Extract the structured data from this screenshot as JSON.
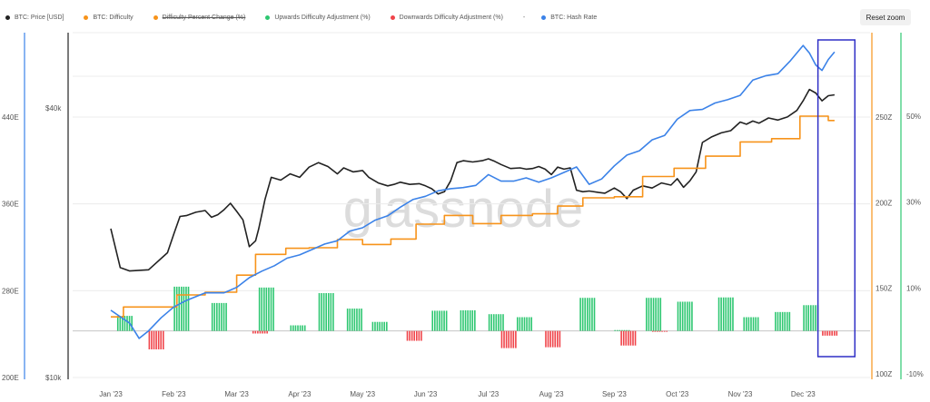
{
  "toolbar": {
    "reset_zoom_label": "Reset zoom"
  },
  "watermark": "glassnode",
  "legend": [
    {
      "label": "BTC: Price [USD]",
      "color": "#222222",
      "struck": false
    },
    {
      "label": "BTC: Difficulty",
      "color": "#f7931a",
      "struck": false
    },
    {
      "label": "Difficulty Percent Change (%)",
      "color": "#f7931a",
      "struck": true
    },
    {
      "label": "Upwards Difficulty Adjustment (%)",
      "color": "#2ec771",
      "struck": false
    },
    {
      "label": "Downwards Difficulty Adjustment (%)",
      "color": "#f0444a",
      "struck": false
    },
    {
      "label": "-",
      "color": "",
      "struck": false,
      "separator": true
    },
    {
      "label": "BTC: Hash Rate",
      "color": "#3b82e8",
      "struck": false
    }
  ],
  "chart_data": {
    "type": "line",
    "x_labels": [
      "Jan '23",
      "Feb '23",
      "Mar '23",
      "Apr '23",
      "May '23",
      "Jun '23",
      "Jul '23",
      "Aug '23",
      "Sep '23",
      "Oct '23",
      "Nov '23",
      "Dec '23"
    ],
    "axes": {
      "hash_rate": {
        "ticks": [
          "200E",
          "280E",
          "360E",
          "440E"
        ],
        "range": [
          200,
          560
        ]
      },
      "price": {
        "ticks": [
          "$10k",
          "$40k"
        ],
        "scale": "log"
      },
      "difficulty": {
        "ticks": [
          "100Z",
          "150Z",
          "200Z",
          "250Z"
        ]
      },
      "percent_change": {
        "ticks": [
          "-10%",
          "10%",
          "30%",
          "50%"
        ],
        "range": [
          -10,
          70
        ]
      }
    },
    "series": [
      {
        "name": "BTC: Price [USD]",
        "color": "#222222",
        "values": [
          [
            0,
            21.5
          ],
          [
            0.15,
            17.6
          ],
          [
            0.3,
            17.3
          ],
          [
            0.6,
            17.4
          ],
          [
            0.9,
            19.0
          ],
          [
            1.0,
            20.9
          ],
          [
            1.1,
            22.9
          ],
          [
            1.2,
            23.0
          ],
          [
            1.35,
            23.4
          ],
          [
            1.5,
            23.6
          ],
          [
            1.6,
            22.8
          ],
          [
            1.7,
            23.1
          ],
          [
            1.8,
            23.7
          ],
          [
            1.9,
            24.5
          ],
          [
            2.0,
            23.5
          ],
          [
            2.1,
            22.5
          ],
          [
            2.2,
            19.6
          ],
          [
            2.3,
            20.2
          ],
          [
            2.35,
            21.5
          ],
          [
            2.45,
            25.0
          ],
          [
            2.55,
            28.0
          ],
          [
            2.7,
            27.6
          ],
          [
            2.85,
            28.5
          ],
          [
            3.0,
            28.0
          ],
          [
            3.15,
            29.5
          ],
          [
            3.3,
            30.2
          ],
          [
            3.45,
            29.6
          ],
          [
            3.6,
            28.5
          ],
          [
            3.7,
            29.4
          ],
          [
            3.85,
            28.8
          ],
          [
            4.0,
            29.0
          ],
          [
            4.1,
            28.0
          ],
          [
            4.25,
            27.2
          ],
          [
            4.4,
            26.8
          ],
          [
            4.5,
            27.0
          ],
          [
            4.6,
            27.3
          ],
          [
            4.75,
            27.0
          ],
          [
            4.9,
            27.1
          ],
          [
            5.0,
            26.8
          ],
          [
            5.1,
            26.4
          ],
          [
            5.2,
            25.7
          ],
          [
            5.3,
            26.0
          ],
          [
            5.4,
            27.5
          ],
          [
            5.5,
            30.2
          ],
          [
            5.6,
            30.5
          ],
          [
            5.75,
            30.3
          ],
          [
            5.9,
            30.5
          ],
          [
            6.0,
            30.8
          ],
          [
            6.1,
            30.4
          ],
          [
            6.2,
            29.9
          ],
          [
            6.35,
            29.3
          ],
          [
            6.5,
            29.4
          ],
          [
            6.6,
            29.2
          ],
          [
            6.7,
            29.3
          ],
          [
            6.8,
            29.6
          ],
          [
            6.9,
            29.2
          ],
          [
            7.0,
            28.4
          ],
          [
            7.1,
            29.5
          ],
          [
            7.2,
            29.2
          ],
          [
            7.3,
            29.4
          ],
          [
            7.4,
            26.2
          ],
          [
            7.5,
            26.0
          ],
          [
            7.6,
            26.1
          ],
          [
            7.75,
            25.9
          ],
          [
            7.85,
            25.8
          ],
          [
            8.0,
            26.5
          ],
          [
            8.1,
            26.0
          ],
          [
            8.2,
            25.1
          ],
          [
            8.3,
            26.2
          ],
          [
            8.45,
            26.8
          ],
          [
            8.6,
            26.5
          ],
          [
            8.75,
            27.2
          ],
          [
            8.9,
            26.9
          ],
          [
            9.0,
            27.8
          ],
          [
            9.1,
            26.6
          ],
          [
            9.2,
            27.5
          ],
          [
            9.3,
            28.8
          ],
          [
            9.4,
            33.5
          ],
          [
            9.55,
            34.5
          ],
          [
            9.7,
            35.2
          ],
          [
            9.85,
            35.6
          ],
          [
            10.0,
            37.2
          ],
          [
            10.1,
            36.8
          ],
          [
            10.2,
            37.4
          ],
          [
            10.3,
            37.0
          ],
          [
            10.45,
            38.0
          ],
          [
            10.6,
            37.6
          ],
          [
            10.75,
            38.2
          ],
          [
            10.9,
            39.5
          ],
          [
            11.0,
            41.5
          ],
          [
            11.1,
            44.0
          ],
          [
            11.2,
            43.2
          ],
          [
            11.3,
            41.5
          ],
          [
            11.4,
            42.6
          ],
          [
            11.5,
            42.8
          ]
        ]
      },
      {
        "name": "BTC: Difficulty",
        "color": "#f7931a",
        "values": [
          [
            0,
            35.4
          ],
          [
            0.2,
            35.4
          ],
          [
            0.2,
            37.2
          ],
          [
            0.7,
            37.2
          ],
          [
            0.7,
            37.2
          ],
          [
            1.05,
            37.2
          ],
          [
            1.05,
            39.4
          ],
          [
            1.5,
            39.4
          ],
          [
            1.5,
            39.9
          ],
          [
            2.0,
            39.9
          ],
          [
            2.0,
            43.0
          ],
          [
            2.3,
            43.0
          ],
          [
            2.3,
            46.8
          ],
          [
            2.78,
            46.8
          ],
          [
            2.78,
            47.9
          ],
          [
            3.15,
            47.9
          ],
          [
            3.15,
            48.0
          ],
          [
            3.6,
            48.0
          ],
          [
            3.6,
            49.5
          ],
          [
            4.0,
            49.5
          ],
          [
            4.0,
            48.6
          ],
          [
            4.45,
            48.6
          ],
          [
            4.45,
            49.6
          ],
          [
            4.85,
            49.6
          ],
          [
            4.85,
            52.3
          ],
          [
            5.3,
            52.3
          ],
          [
            5.3,
            53.9
          ],
          [
            5.75,
            53.9
          ],
          [
            5.75,
            52.4
          ],
          [
            6.2,
            52.4
          ],
          [
            6.2,
            53.9
          ],
          [
            6.7,
            53.9
          ],
          [
            6.7,
            54.2
          ],
          [
            7.1,
            54.2
          ],
          [
            7.1,
            55.6
          ],
          [
            7.5,
            55.6
          ],
          [
            7.5,
            57.1
          ],
          [
            8.0,
            57.1
          ],
          [
            8.0,
            57.3
          ],
          [
            8.45,
            57.3
          ],
          [
            8.45,
            61.0
          ],
          [
            8.95,
            61.0
          ],
          [
            8.95,
            62.5
          ],
          [
            9.45,
            62.5
          ],
          [
            9.45,
            64.7
          ],
          [
            10.0,
            64.7
          ],
          [
            10.0,
            67.3
          ],
          [
            10.5,
            67.3
          ],
          [
            10.5,
            67.9
          ],
          [
            10.95,
            67.9
          ],
          [
            10.95,
            72.0
          ],
          [
            11.4,
            72.0
          ],
          [
            11.4,
            71.2
          ],
          [
            11.5,
            71.2
          ]
        ]
      },
      {
        "name": "BTC: Hash Rate",
        "color": "#3b82e8",
        "values": [
          [
            0,
            262
          ],
          [
            0.15,
            256
          ],
          [
            0.3,
            250
          ],
          [
            0.45,
            236
          ],
          [
            0.6,
            243
          ],
          [
            0.8,
            255
          ],
          [
            1.0,
            265
          ],
          [
            1.2,
            271
          ],
          [
            1.5,
            278
          ],
          [
            1.8,
            278
          ],
          [
            2.0,
            283
          ],
          [
            2.2,
            292
          ],
          [
            2.4,
            298
          ],
          [
            2.6,
            303
          ],
          [
            2.8,
            310
          ],
          [
            3.0,
            313
          ],
          [
            3.2,
            318
          ],
          [
            3.4,
            323
          ],
          [
            3.6,
            326
          ],
          [
            3.8,
            335
          ],
          [
            4.0,
            338
          ],
          [
            4.2,
            345
          ],
          [
            4.4,
            349
          ],
          [
            4.6,
            357
          ],
          [
            4.8,
            364
          ],
          [
            5.0,
            367
          ],
          [
            5.2,
            372
          ],
          [
            5.4,
            374
          ],
          [
            5.6,
            375
          ],
          [
            5.8,
            377
          ],
          [
            6.0,
            387
          ],
          [
            6.2,
            381
          ],
          [
            6.4,
            381
          ],
          [
            6.6,
            384
          ],
          [
            6.8,
            380
          ],
          [
            7.0,
            384
          ],
          [
            7.2,
            389
          ],
          [
            7.4,
            394
          ],
          [
            7.6,
            378
          ],
          [
            7.8,
            383
          ],
          [
            8.0,
            395
          ],
          [
            8.2,
            405
          ],
          [
            8.4,
            409
          ],
          [
            8.6,
            419
          ],
          [
            8.8,
            423
          ],
          [
            9.0,
            438
          ],
          [
            9.2,
            446
          ],
          [
            9.4,
            447
          ],
          [
            9.6,
            453
          ],
          [
            9.8,
            456
          ],
          [
            10.0,
            460
          ],
          [
            10.2,
            474
          ],
          [
            10.4,
            478
          ],
          [
            10.6,
            480
          ],
          [
            10.8,
            492
          ],
          [
            11.0,
            506
          ],
          [
            11.1,
            499
          ],
          [
            11.2,
            488
          ],
          [
            11.3,
            483
          ],
          [
            11.4,
            493
          ],
          [
            11.5,
            500
          ]
        ]
      },
      {
        "name": "Upwards Difficulty Adjustment (%)",
        "color": "#2ec771",
        "values": [
          [
            0.1,
            3.5
          ],
          [
            1.0,
            10.3
          ],
          [
            1.6,
            6.5
          ],
          [
            2.35,
            10.1
          ],
          [
            2.85,
            1.3
          ],
          [
            3.3,
            8.8
          ],
          [
            3.75,
            5.2
          ],
          [
            4.15,
            2.1
          ],
          [
            5.1,
            4.7
          ],
          [
            5.55,
            4.8
          ],
          [
            6.0,
            3.9
          ],
          [
            6.45,
            3.2
          ],
          [
            7.45,
            7.7
          ],
          [
            8.0,
            0.2
          ],
          [
            8.5,
            7.7
          ],
          [
            9.0,
            6.8
          ],
          [
            9.65,
            7.8
          ],
          [
            10.05,
            3.2
          ],
          [
            10.55,
            4.4
          ],
          [
            11.0,
            6.0
          ]
        ]
      },
      {
        "name": "Downwards Difficulty Adjustment (%)",
        "color": "#f0444a",
        "values": [
          [
            0.6,
            -4.3
          ],
          [
            2.25,
            -0.6
          ],
          [
            4.7,
            -2.3
          ],
          [
            6.2,
            -4.0
          ],
          [
            6.9,
            -3.8
          ],
          [
            8.1,
            -3.4
          ],
          [
            8.6,
            -0.2
          ],
          [
            11.3,
            -1.1
          ]
        ]
      }
    ],
    "annotation": {
      "type": "rectangle-highlight",
      "color": "#2f2fc6",
      "from_x": 11.25,
      "to_x": 11.75
    }
  }
}
